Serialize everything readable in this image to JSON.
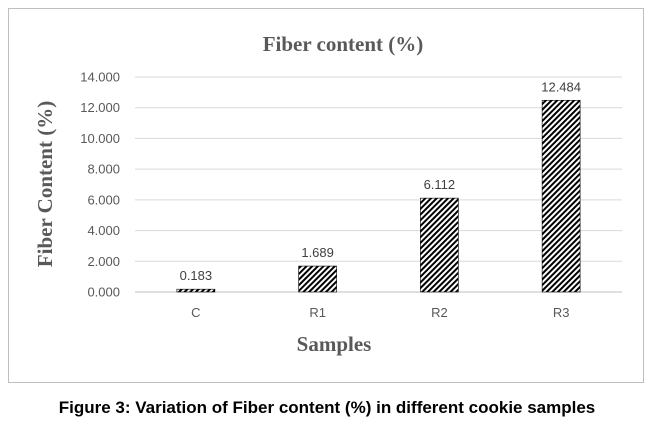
{
  "chart_data": {
    "type": "bar",
    "title": "Fiber content (%)",
    "xlabel": "Samples",
    "ylabel": "Fiber Content (%)",
    "categories": [
      "C",
      "R1",
      "R2",
      "R3"
    ],
    "values": [
      0.183,
      1.689,
      6.112,
      12.484
    ],
    "data_labels": [
      "0.183",
      "1.689",
      "6.112",
      "12.484"
    ],
    "ylim": [
      0,
      14
    ],
    "yticks": [
      "0.000",
      "2.000",
      "4.000",
      "6.000",
      "8.000",
      "10.000",
      "12.000",
      "14.000"
    ],
    "ytick_values": [
      0,
      2,
      4,
      6,
      8,
      10,
      12,
      14
    ],
    "grid": true,
    "legend": "none",
    "bar_fill": "diagonal-hatch",
    "colors": {
      "bar": "#000000",
      "grid": "#d9d9d9",
      "text": "#595959"
    }
  },
  "caption": "Figure 3: Variation of Fiber content (%) in different cookie samples"
}
